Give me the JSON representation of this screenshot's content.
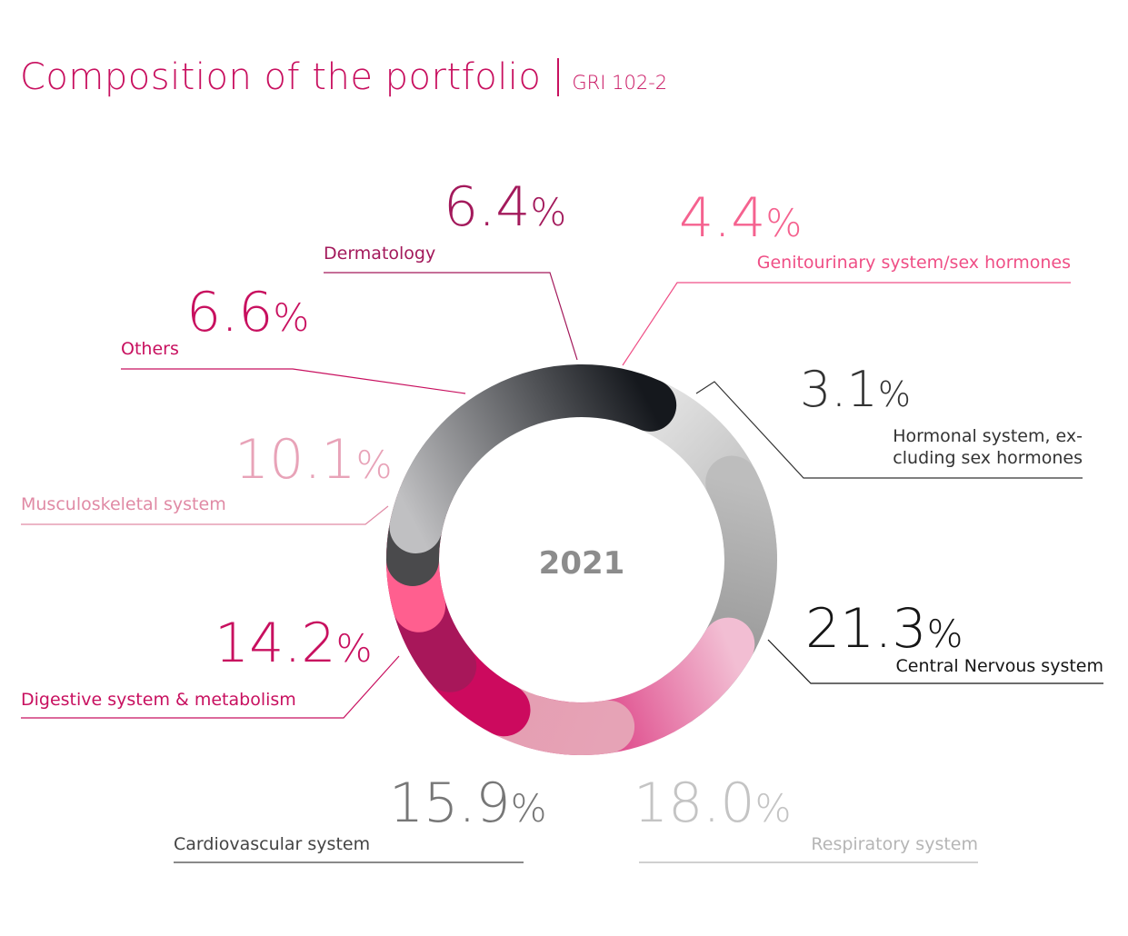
{
  "title": "Composition of the portfolio",
  "subtitle": "GRI 102-2",
  "chart_data": {
    "type": "pie",
    "center_label": "2021",
    "value_suffix": "%",
    "categories": [
      "Hormonal system, ex-cluding sex hormones",
      "Central Nervous system",
      "Respiratory system",
      "Cardiovascular system",
      "Digestive system & metabolism",
      "Musculoskeletal system",
      "Others",
      "Dermatology",
      "Genitourinary system/sex hormones"
    ],
    "values": [
      3.1,
      21.3,
      18.0,
      15.9,
      14.2,
      10.1,
      6.6,
      6.4,
      4.4
    ],
    "slices": [
      {
        "label": "Hormonal system, ex-cluding sex hormones",
        "label_lines": [
          "Hormonal system, ex-",
          "cluding sex hormones"
        ],
        "value": 3.1,
        "value_text": "3.1",
        "color_start": "#4a4a4c",
        "color_end": "#4a4a4c",
        "text_color": "#333333",
        "label_color": "#333333"
      },
      {
        "label": "Central Nervous system",
        "label_lines": [
          "Central Nervous system"
        ],
        "value": 21.3,
        "value_text": "21.3",
        "color_start": "#15181d",
        "color_end": "#c0c0c2",
        "text_color": "#151515",
        "label_color": "#151515"
      },
      {
        "label": "Respiratory system",
        "label_lines": [
          "Respiratory system"
        ],
        "value": 18.0,
        "value_text": "18.0",
        "color_start": "#b7b7b7",
        "color_end": "#f3f3f3",
        "text_color": "#c4c4c4",
        "label_color": "#b5b5b5"
      },
      {
        "label": "Cardiovascular system",
        "label_lines": [
          "Cardiovascular system"
        ],
        "value": 15.9,
        "value_text": "15.9",
        "color_start": "#8e8e8e",
        "color_end": "#bdbdbd",
        "text_color": "#777777",
        "label_color": "#444444"
      },
      {
        "label": "Digestive system & metabolism",
        "label_lines": [
          "Digestive system & metabolism"
        ],
        "value": 14.2,
        "value_text": "14.2",
        "color_start": "#d6166b",
        "color_end": "#f2bed3",
        "text_color": "#c8105f",
        "label_color": "#c8105f"
      },
      {
        "label": "Musculoskeletal system",
        "label_lines": [
          "Musculoskeletal system"
        ],
        "value": 10.1,
        "value_text": "10.1",
        "color_start": "#e49aaf",
        "color_end": "#e6a3b6",
        "text_color": "#e8a3b8",
        "label_color": "#e08aa5"
      },
      {
        "label": "Others",
        "label_lines": [
          "Others"
        ],
        "value": 6.6,
        "value_text": "6.6",
        "color_start": "#cc0a5e",
        "color_end": "#cc0a5e",
        "text_color": "#c8105f",
        "label_color": "#c8105f"
      },
      {
        "label": "Dermatology",
        "label_lines": [
          "Dermatology"
        ],
        "value": 6.4,
        "value_text": "6.4",
        "color_start": "#a8175a",
        "color_end": "#a8175a",
        "text_color": "#a3195b",
        "label_color": "#a3195b"
      },
      {
        "label": "Genitourinary system/sex hormones",
        "label_lines": [
          "Genitourinary system/sex hormones"
        ],
        "value": 4.4,
        "value_text": "4.4",
        "color_start": "#ff5f8f",
        "color_end": "#ff5f8f",
        "text_color": "#f5628f",
        "label_color": "#ef4f86"
      }
    ]
  }
}
